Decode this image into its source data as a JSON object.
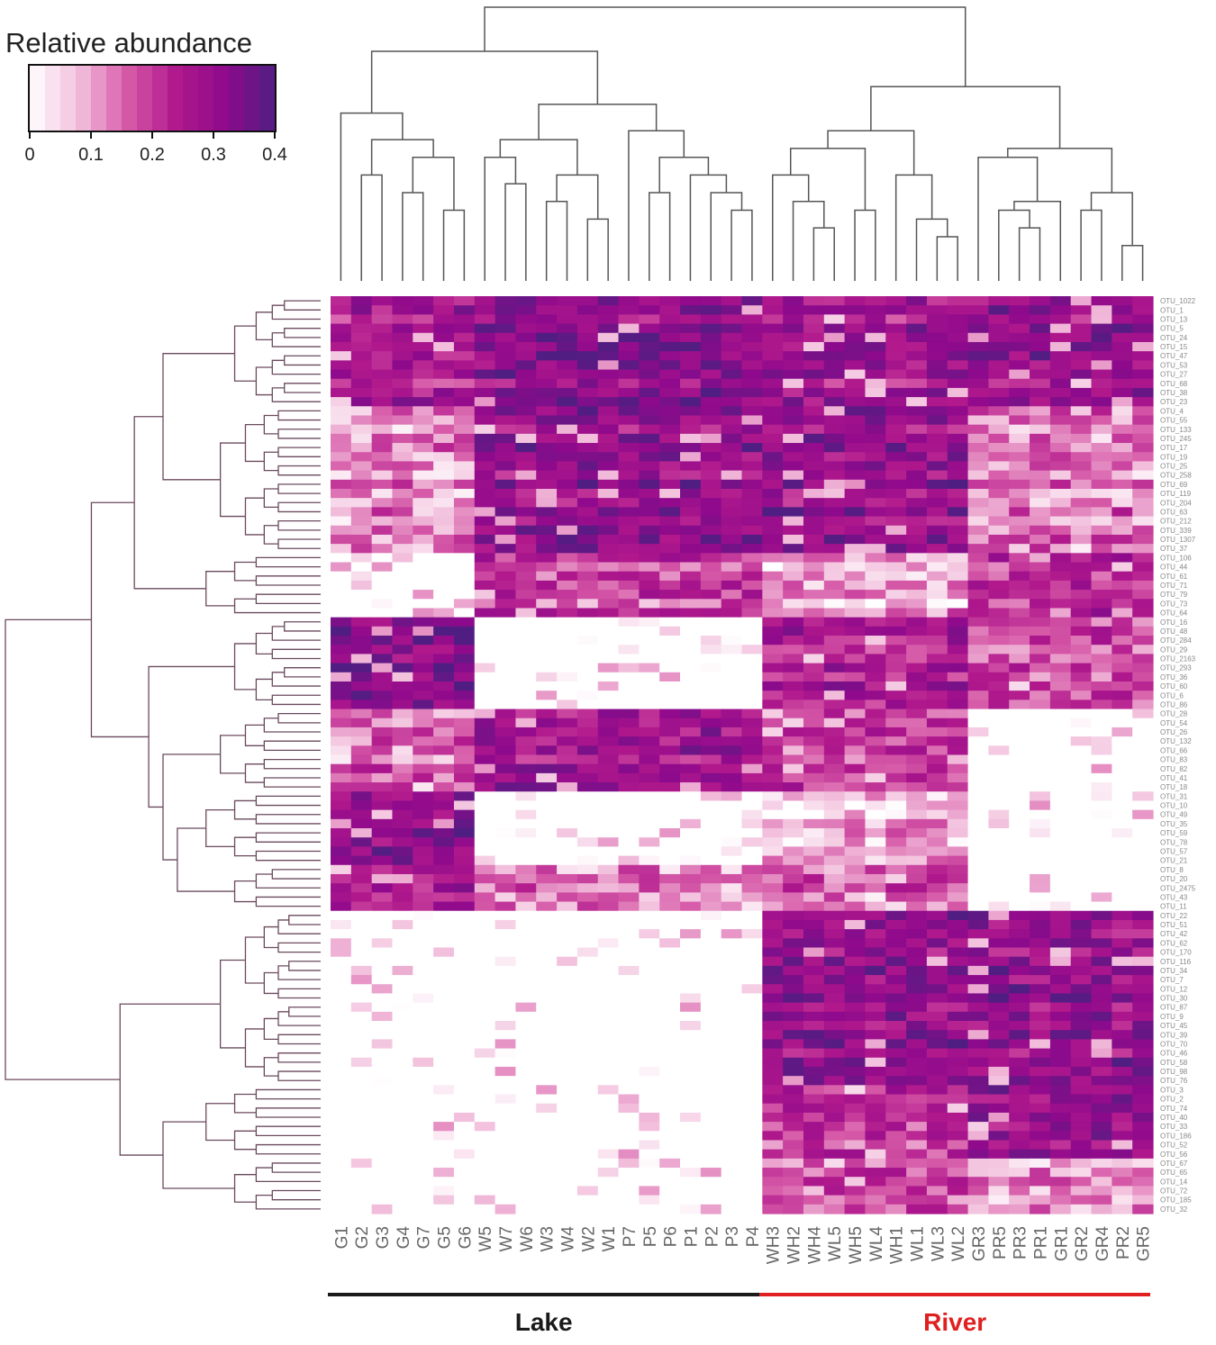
{
  "chart_data": {
    "type": "heatmap",
    "title": "",
    "legend": {
      "title": "Relative abundance",
      "ticks": [
        "0",
        "0.1",
        "0.2",
        "0.3",
        "0.4"
      ],
      "range": [
        0,
        0.4
      ],
      "colors": [
        "#ffffff",
        "#f2bfdc",
        "#d65aa8",
        "#b0188c",
        "#8e0a8c",
        "#501e82"
      ]
    },
    "columns": [
      "G1",
      "G2",
      "G3",
      "G4",
      "G7",
      "G5",
      "G6",
      "W5",
      "W7",
      "W6",
      "W3",
      "W4",
      "W2",
      "W1",
      "P7",
      "P5",
      "P6",
      "P1",
      "P2",
      "P3",
      "P4",
      "WH3",
      "WH2",
      "WH4",
      "WL5",
      "WH5",
      "WL4",
      "WH1",
      "WL1",
      "WL3",
      "WL2",
      "GR3",
      "PR5",
      "PR3",
      "PR1",
      "GR1",
      "GR2",
      "GR4",
      "PR2",
      "GR5"
    ],
    "rows": [
      "OTU_1022",
      "OTU_1",
      "OTU_13",
      "OTU_5",
      "OTU_24",
      "OTU_15",
      "OTU_47",
      "OTU_53",
      "OTU_27",
      "OTU_68",
      "OTU_38",
      "OTU_23",
      "OTU_4",
      "OTU_55",
      "OTU_133",
      "OTU_245",
      "OTU_17",
      "OTU_19",
      "OTU_25",
      "OTU_258",
      "OTU_69",
      "OTU_119",
      "OTU_204",
      "OTU_63",
      "OTU_212",
      "OTU_339",
      "OTU_1307",
      "OTU_37",
      "OTU_106",
      "OTU_44",
      "OTU_61",
      "OTU_71",
      "OTU_79",
      "OTU_73",
      "OTU_64",
      "OTU_16",
      "OTU_48",
      "OTU_284",
      "OTU_29",
      "OTU_2163",
      "OTU_293",
      "OTU_36",
      "OTU_60",
      "OTU_6",
      "OTU_86",
      "OTU_28",
      "OTU_54",
      "OTU_26",
      "OTU_132",
      "OTU_66",
      "OTU_83",
      "OTU_82",
      "OTU_41",
      "OTU_18",
      "OTU_31",
      "OTU_10",
      "OTU_49",
      "OTU_35",
      "OTU_59",
      "OTU_78",
      "OTU_57",
      "OTU_21",
      "OTU_8",
      "OTU_20",
      "OTU_2475",
      "OTU_43",
      "OTU_11",
      "OTU_22",
      "OTU_51",
      "OTU_42",
      "OTU_62",
      "OTU_170",
      "OTU_116",
      "OTU_34",
      "OTU_7",
      "OTU_12",
      "OTU_30",
      "OTU_87",
      "OTU_9",
      "OTU_45",
      "OTU_39",
      "OTU_70",
      "OTU_46",
      "OTU_58",
      "OTU_98",
      "OTU_76",
      "OTU_3",
      "OTU_2",
      "OTU_74",
      "OTU_40",
      "OTU_33",
      "OTU_186",
      "OTU_52",
      "OTU_56",
      "OTU_67",
      "OTU_65",
      "OTU_14",
      "OTU_72",
      "OTU_185",
      "OTU_32"
    ],
    "groups": [
      {
        "name": "Lake",
        "color": "#1a1a1a",
        "first": "G1",
        "last": "P4"
      },
      {
        "name": "River",
        "color": "#e02020",
        "first": "WH3",
        "last": "GR5"
      }
    ],
    "blocks": [
      {
        "rows": [
          0,
          11
        ],
        "levels": [
          0.24,
          0.3,
          0.26,
          0.28
        ]
      },
      {
        "rows": [
          12,
          27
        ],
        "levels": [
          0.12,
          0.3,
          0.3,
          0.14
        ]
      },
      {
        "rows": [
          28,
          34
        ],
        "levels": [
          0.04,
          0.2,
          0.1,
          0.22
        ]
      },
      {
        "rows": [
          35,
          44
        ],
        "levels": [
          0.33,
          0.03,
          0.24,
          0.18
        ]
      },
      {
        "rows": [
          45,
          53
        ],
        "levels": [
          0.16,
          0.28,
          0.2,
          0.02
        ]
      },
      {
        "rows": [
          54,
          61
        ],
        "levels": [
          0.3,
          0.02,
          0.08,
          0.02
        ]
      },
      {
        "rows": [
          62,
          66
        ],
        "levels": [
          0.24,
          0.14,
          0.16,
          0.04
        ]
      },
      {
        "rows": [
          67,
          85
        ],
        "levels": [
          0.02,
          0.01,
          0.3,
          0.3
        ]
      },
      {
        "rows": [
          86,
          93
        ],
        "levels": [
          0.02,
          0.01,
          0.2,
          0.28
        ]
      },
      {
        "rows": [
          94,
          99
        ],
        "levels": [
          0.04,
          0.03,
          0.18,
          0.12
        ]
      }
    ],
    "block_column_splits": [
      7,
      21,
      31
    ],
    "notes": "approximate_cell_values"
  }
}
